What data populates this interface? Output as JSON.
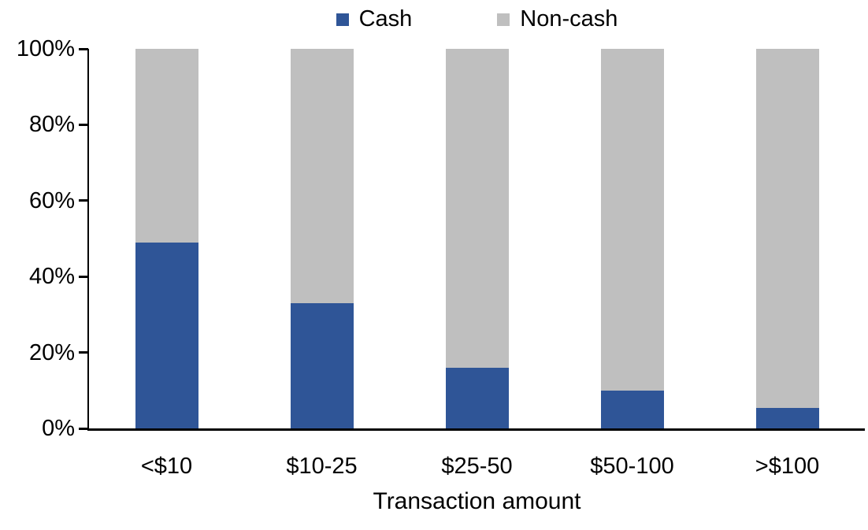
{
  "chart_data": {
    "type": "bar",
    "stacked": true,
    "title": "",
    "xlabel": "Transaction amount",
    "ylabel": "",
    "categories": [
      "<$10",
      "$10-25",
      "$25-50",
      "$50-100",
      ">$100"
    ],
    "series": [
      {
        "name": "Cash",
        "color": "#2F5597",
        "values": [
          49,
          33,
          16,
          10,
          5.5
        ]
      },
      {
        "name": "Non-cash",
        "color": "#BFBFBF",
        "values": [
          51,
          67,
          84,
          90,
          94.5
        ]
      }
    ],
    "y_ticks": [
      "0%",
      "20%",
      "40%",
      "60%",
      "80%",
      "100%"
    ],
    "ylim": [
      0,
      100
    ],
    "legend_position": "top",
    "grid": false,
    "axis_color": "#000000",
    "background_color": "#FFFFFF"
  }
}
